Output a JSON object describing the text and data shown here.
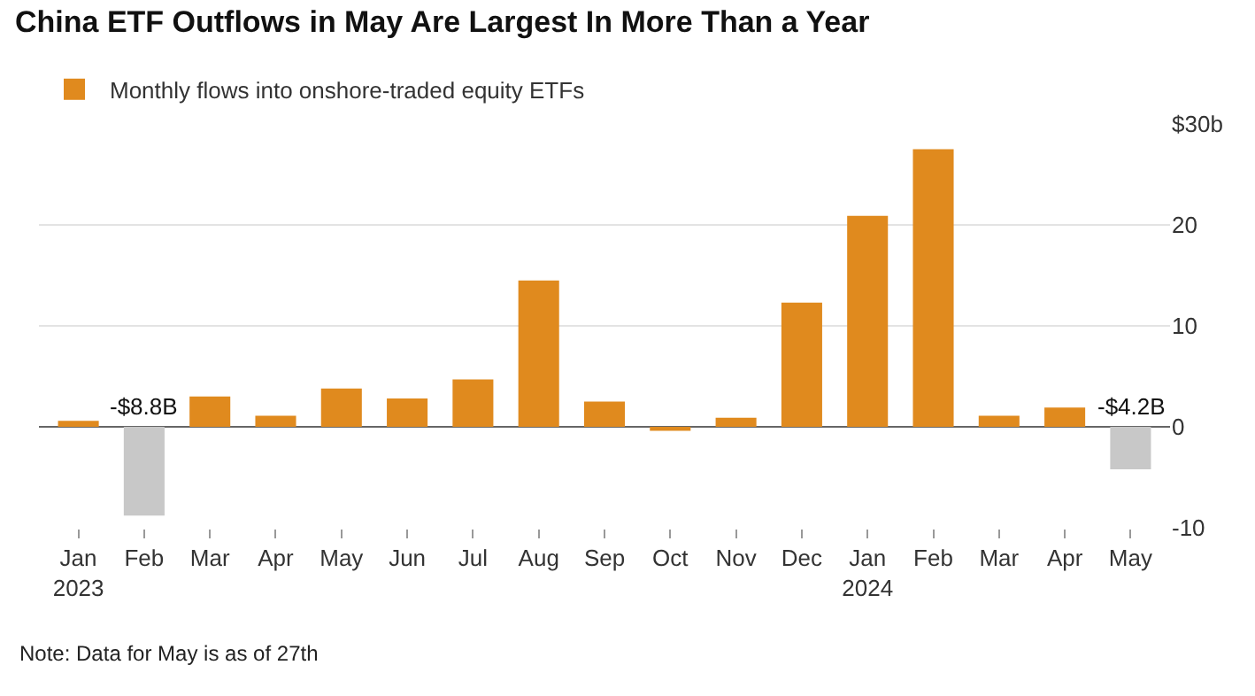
{
  "chart_data": {
    "type": "bar",
    "title": "China ETF Outflows in May Are Largest In More Than a Year",
    "categories": [
      "Jan\n2023",
      "Feb",
      "Mar",
      "Apr",
      "May",
      "Jun",
      "Jul",
      "Aug",
      "Sep",
      "Oct",
      "Nov",
      "Dec",
      "Jan\n2024",
      "Feb",
      "Mar",
      "Apr",
      "May"
    ],
    "series": [
      {
        "name": "Monthly flows into onshore-traded equity ETFs",
        "color": "#e08a1e",
        "colors": [
          "#e08a1e",
          "#c8c8c8",
          "#e08a1e",
          "#e08a1e",
          "#e08a1e",
          "#e08a1e",
          "#e08a1e",
          "#e08a1e",
          "#e08a1e",
          "#e08a1e",
          "#e08a1e",
          "#e08a1e",
          "#e08a1e",
          "#e08a1e",
          "#e08a1e",
          "#e08a1e",
          "#c8c8c8"
        ],
        "values": [
          0.6,
          -8.8,
          3.0,
          1.1,
          3.8,
          2.8,
          4.7,
          14.5,
          2.5,
          -0.4,
          0.9,
          12.3,
          20.9,
          27.5,
          1.1,
          1.9,
          -4.2
        ],
        "value_labels": [
          null,
          "-$8.8B",
          null,
          null,
          null,
          null,
          null,
          null,
          null,
          null,
          null,
          null,
          null,
          null,
          null,
          null,
          "-$4.2B"
        ]
      }
    ],
    "ylim": [
      -10,
      30
    ],
    "yticks": [
      {
        "value": 30,
        "label": "$30b"
      },
      20,
      10,
      0,
      -10
    ],
    "grid": "y",
    "legend": "top left",
    "annotations": [
      "Note: Data for May is as of 27th"
    ]
  }
}
